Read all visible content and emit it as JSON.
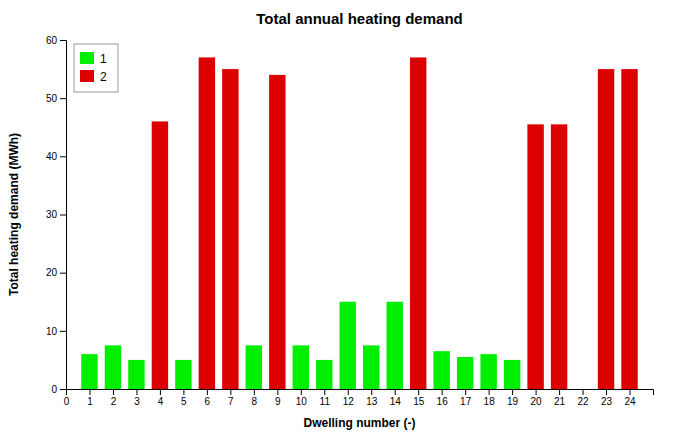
{
  "chart_data": {
    "type": "bar",
    "title": "Total annual heating demand",
    "xlabel": "Dwelling number (-)",
    "ylabel": "Total heating demand (MWh)",
    "x": [
      1,
      2,
      3,
      4,
      5,
      6,
      7,
      8,
      9,
      10,
      11,
      12,
      13,
      14,
      15,
      16,
      17,
      18,
      19,
      20,
      21,
      22,
      23,
      24
    ],
    "series": [
      {
        "name": "1",
        "color": "#00EE00",
        "values": [
          6,
          7.5,
          5,
          null,
          5,
          null,
          null,
          7.5,
          null,
          7.5,
          5,
          15,
          7.5,
          15,
          null,
          6.5,
          5.5,
          6,
          5,
          null,
          null,
          0,
          null,
          null
        ]
      },
      {
        "name": "2",
        "color": "#DD0000",
        "values": [
          null,
          null,
          null,
          46,
          null,
          57,
          55,
          null,
          54,
          null,
          null,
          null,
          null,
          null,
          57,
          null,
          null,
          null,
          null,
          45.5,
          45.5,
          null,
          55,
          55
        ]
      }
    ],
    "xlim": [
      0,
      25
    ],
    "xticks": [
      0,
      1,
      2,
      3,
      4,
      5,
      6,
      7,
      8,
      9,
      10,
      11,
      12,
      13,
      14,
      15,
      16,
      17,
      18,
      19,
      20,
      21,
      22,
      23,
      24
    ],
    "ylim": [
      0,
      60
    ],
    "yticks": [
      0,
      10,
      20,
      30,
      40,
      50,
      60
    ],
    "legend": "upper left",
    "grid": false
  }
}
